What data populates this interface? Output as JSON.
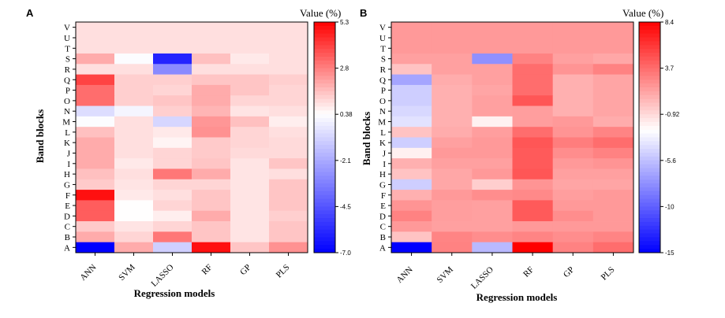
{
  "chart_data": [
    {
      "type": "heatmap",
      "panel": "A",
      "xlabel": "Regression models",
      "ylabel": "Band blocks",
      "colorbar_title": "Value (%)",
      "x_categories": [
        "ANN",
        "SVM",
        "LASSO",
        "RF",
        "GP",
        "PLS"
      ],
      "y_categories": [
        "V",
        "U",
        "T",
        "S",
        "R",
        "Q",
        "P",
        "O",
        "N",
        "M",
        "L",
        "K",
        "J",
        "I",
        "H",
        "G",
        "F",
        "E",
        "D",
        "C",
        "B",
        "A"
      ],
      "colorbar": {
        "min": -7.0,
        "max": 5.3,
        "mid": 0.38,
        "ticks": [
          "5.3",
          "2.8",
          "0.38",
          "-2.1",
          "-4.5",
          "-7.0"
        ]
      },
      "values": [
        [
          1.0,
          1.0,
          1.0,
          1.0,
          1.0,
          1.0
        ],
        [
          1.0,
          1.0,
          1.0,
          1.0,
          1.0,
          1.0
        ],
        [
          1.0,
          1.0,
          1.0,
          1.0,
          1.0,
          1.0
        ],
        [
          2.0,
          0.3,
          -6.0,
          1.6,
          0.8,
          1.0
        ],
        [
          1.0,
          1.0,
          -3.0,
          1.0,
          1.0,
          1.0
        ],
        [
          4.0,
          1.3,
          1.3,
          1.5,
          1.5,
          1.3
        ],
        [
          3.2,
          1.3,
          1.2,
          2.0,
          1.5,
          1.2
        ],
        [
          3.2,
          1.3,
          1.5,
          2.0,
          1.2,
          1.2
        ],
        [
          -0.6,
          0.1,
          1.3,
          1.8,
          0.9,
          1.0
        ],
        [
          0.3,
          1.0,
          -0.8,
          2.4,
          1.6,
          0.7
        ],
        [
          1.6,
          1.0,
          0.8,
          2.5,
          1.2,
          1.0
        ],
        [
          2.0,
          1.0,
          0.6,
          1.4,
          1.2,
          1.1
        ],
        [
          2.0,
          1.0,
          1.2,
          1.4,
          1.1,
          1.1
        ],
        [
          2.0,
          0.8,
          1.2,
          1.5,
          0.9,
          1.5
        ],
        [
          1.6,
          1.0,
          3.0,
          2.0,
          0.9,
          1.0
        ],
        [
          1.4,
          0.9,
          1.2,
          1.2,
          0.9,
          1.5
        ],
        [
          5.0,
          0.8,
          1.0,
          1.5,
          0.9,
          1.5
        ],
        [
          3.5,
          0.4,
          1.2,
          1.5,
          0.9,
          1.5
        ],
        [
          3.5,
          0.4,
          0.7,
          2.0,
          0.9,
          1.3
        ],
        [
          1.4,
          0.9,
          1.2,
          1.5,
          0.9,
          1.5
        ],
        [
          2.0,
          1.2,
          3.0,
          1.5,
          0.9,
          1.5
        ],
        [
          -7.0,
          2.0,
          -1.0,
          5.0,
          1.5,
          2.5
        ]
      ]
    },
    {
      "type": "heatmap",
      "panel": "B",
      "xlabel": "Regression models",
      "ylabel": "Band blocks",
      "colorbar_title": "Value (%)",
      "x_categories": [
        "ANN",
        "SVM",
        "LASSO",
        "RF",
        "GP",
        "PLS"
      ],
      "y_categories": [
        "V",
        "U",
        "T",
        "S",
        "R",
        "Q",
        "P",
        "O",
        "N",
        "M",
        "L",
        "K",
        "J",
        "I",
        "H",
        "G",
        "F",
        "E",
        "D",
        "C",
        "B",
        "A"
      ],
      "colorbar": {
        "min": -15,
        "max": 8.4,
        "mid": -2.6,
        "ticks": [
          "8.4",
          "3.7",
          "-0.92",
          "-5.6",
          "-10",
          "-15"
        ]
      },
      "values": [
        [
          1.8,
          1.8,
          1.8,
          1.8,
          1.8,
          1.8
        ],
        [
          1.8,
          1.8,
          1.8,
          1.8,
          1.8,
          1.8
        ],
        [
          1.8,
          1.8,
          1.8,
          1.8,
          1.8,
          1.8
        ],
        [
          1.5,
          1.5,
          -8.0,
          2.8,
          1.5,
          1.2
        ],
        [
          0.0,
          1.5,
          1.5,
          3.7,
          2.0,
          2.8
        ],
        [
          -7.0,
          1.0,
          1.5,
          3.7,
          0.8,
          1.3
        ],
        [
          -5.0,
          0.8,
          1.3,
          3.7,
          0.8,
          1.3
        ],
        [
          -5.0,
          0.8,
          1.5,
          4.7,
          0.8,
          1.3
        ],
        [
          -4.5,
          0.8,
          1.5,
          1.6,
          0.8,
          1.3
        ],
        [
          -4.0,
          0.8,
          -2.0,
          1.6,
          1.8,
          1.0
        ],
        [
          0.0,
          1.0,
          1.6,
          3.7,
          2.0,
          2.7
        ],
        [
          -5.0,
          1.5,
          1.8,
          4.7,
          3.0,
          3.7
        ],
        [
          -2.0,
          1.8,
          1.8,
          4.5,
          2.3,
          2.8
        ],
        [
          0.8,
          1.5,
          1.5,
          4.5,
          1.8,
          2.0
        ],
        [
          0.0,
          1.2,
          1.8,
          4.7,
          1.5,
          1.5
        ],
        [
          -5.0,
          1.2,
          -0.5,
          2.0,
          1.3,
          1.3
        ],
        [
          0.8,
          1.8,
          2.3,
          2.5,
          1.6,
          1.8
        ],
        [
          2.0,
          1.6,
          1.5,
          4.5,
          1.8,
          1.8
        ],
        [
          2.8,
          1.6,
          1.5,
          4.5,
          2.3,
          1.8
        ],
        [
          1.8,
          1.5,
          1.5,
          1.8,
          1.8,
          1.8
        ],
        [
          0.0,
          2.7,
          2.3,
          2.7,
          2.3,
          2.7
        ],
        [
          -15.0,
          2.8,
          -6.0,
          8.4,
          2.8,
          3.7
        ]
      ]
    }
  ]
}
